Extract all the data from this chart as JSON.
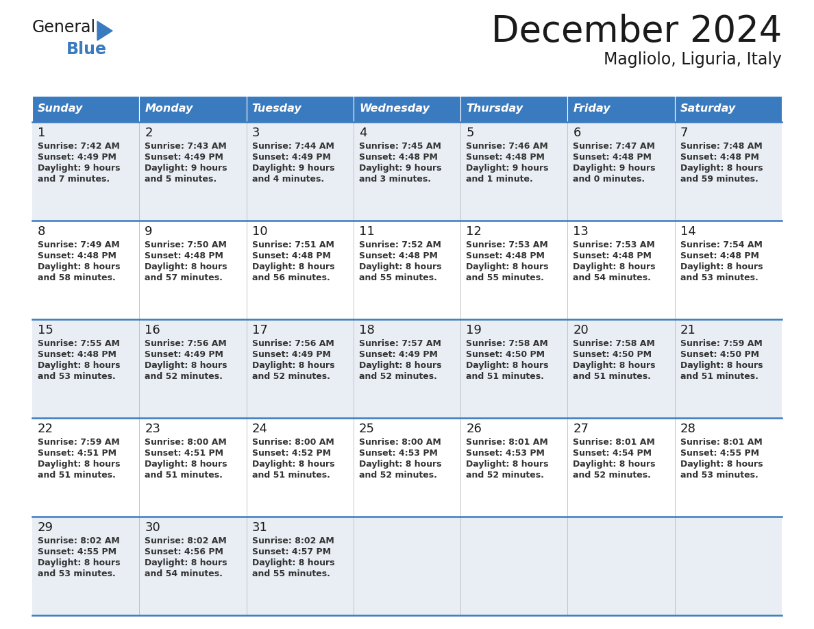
{
  "title": "December 2024",
  "subtitle": "Magliolo, Liguria, Italy",
  "header_bg_color": "#3a7abf",
  "header_text_color": "#ffffff",
  "row_bg_colors": [
    "#e8eef4",
    "#ffffff",
    "#e8eef4",
    "#ffffff",
    "#e8eef4"
  ],
  "border_color": "#3a7abf",
  "day_names": [
    "Sunday",
    "Monday",
    "Tuesday",
    "Wednesday",
    "Thursday",
    "Friday",
    "Saturday"
  ],
  "days": [
    {
      "day": 1,
      "col": 0,
      "row": 0,
      "sunrise": "7:42 AM",
      "sunset": "4:49 PM",
      "daylight_line1": "Daylight: 9 hours",
      "daylight_line2": "and 7 minutes."
    },
    {
      "day": 2,
      "col": 1,
      "row": 0,
      "sunrise": "7:43 AM",
      "sunset": "4:49 PM",
      "daylight_line1": "Daylight: 9 hours",
      "daylight_line2": "and 5 minutes."
    },
    {
      "day": 3,
      "col": 2,
      "row": 0,
      "sunrise": "7:44 AM",
      "sunset": "4:49 PM",
      "daylight_line1": "Daylight: 9 hours",
      "daylight_line2": "and 4 minutes."
    },
    {
      "day": 4,
      "col": 3,
      "row": 0,
      "sunrise": "7:45 AM",
      "sunset": "4:48 PM",
      "daylight_line1": "Daylight: 9 hours",
      "daylight_line2": "and 3 minutes."
    },
    {
      "day": 5,
      "col": 4,
      "row": 0,
      "sunrise": "7:46 AM",
      "sunset": "4:48 PM",
      "daylight_line1": "Daylight: 9 hours",
      "daylight_line2": "and 1 minute."
    },
    {
      "day": 6,
      "col": 5,
      "row": 0,
      "sunrise": "7:47 AM",
      "sunset": "4:48 PM",
      "daylight_line1": "Daylight: 9 hours",
      "daylight_line2": "and 0 minutes."
    },
    {
      "day": 7,
      "col": 6,
      "row": 0,
      "sunrise": "7:48 AM",
      "sunset": "4:48 PM",
      "daylight_line1": "Daylight: 8 hours",
      "daylight_line2": "and 59 minutes."
    },
    {
      "day": 8,
      "col": 0,
      "row": 1,
      "sunrise": "7:49 AM",
      "sunset": "4:48 PM",
      "daylight_line1": "Daylight: 8 hours",
      "daylight_line2": "and 58 minutes."
    },
    {
      "day": 9,
      "col": 1,
      "row": 1,
      "sunrise": "7:50 AM",
      "sunset": "4:48 PM",
      "daylight_line1": "Daylight: 8 hours",
      "daylight_line2": "and 57 minutes."
    },
    {
      "day": 10,
      "col": 2,
      "row": 1,
      "sunrise": "7:51 AM",
      "sunset": "4:48 PM",
      "daylight_line1": "Daylight: 8 hours",
      "daylight_line2": "and 56 minutes."
    },
    {
      "day": 11,
      "col": 3,
      "row": 1,
      "sunrise": "7:52 AM",
      "sunset": "4:48 PM",
      "daylight_line1": "Daylight: 8 hours",
      "daylight_line2": "and 55 minutes."
    },
    {
      "day": 12,
      "col": 4,
      "row": 1,
      "sunrise": "7:53 AM",
      "sunset": "4:48 PM",
      "daylight_line1": "Daylight: 8 hours",
      "daylight_line2": "and 55 minutes."
    },
    {
      "day": 13,
      "col": 5,
      "row": 1,
      "sunrise": "7:53 AM",
      "sunset": "4:48 PM",
      "daylight_line1": "Daylight: 8 hours",
      "daylight_line2": "and 54 minutes."
    },
    {
      "day": 14,
      "col": 6,
      "row": 1,
      "sunrise": "7:54 AM",
      "sunset": "4:48 PM",
      "daylight_line1": "Daylight: 8 hours",
      "daylight_line2": "and 53 minutes."
    },
    {
      "day": 15,
      "col": 0,
      "row": 2,
      "sunrise": "7:55 AM",
      "sunset": "4:48 PM",
      "daylight_line1": "Daylight: 8 hours",
      "daylight_line2": "and 53 minutes."
    },
    {
      "day": 16,
      "col": 1,
      "row": 2,
      "sunrise": "7:56 AM",
      "sunset": "4:49 PM",
      "daylight_line1": "Daylight: 8 hours",
      "daylight_line2": "and 52 minutes."
    },
    {
      "day": 17,
      "col": 2,
      "row": 2,
      "sunrise": "7:56 AM",
      "sunset": "4:49 PM",
      "daylight_line1": "Daylight: 8 hours",
      "daylight_line2": "and 52 minutes."
    },
    {
      "day": 18,
      "col": 3,
      "row": 2,
      "sunrise": "7:57 AM",
      "sunset": "4:49 PM",
      "daylight_line1": "Daylight: 8 hours",
      "daylight_line2": "and 52 minutes."
    },
    {
      "day": 19,
      "col": 4,
      "row": 2,
      "sunrise": "7:58 AM",
      "sunset": "4:50 PM",
      "daylight_line1": "Daylight: 8 hours",
      "daylight_line2": "and 51 minutes."
    },
    {
      "day": 20,
      "col": 5,
      "row": 2,
      "sunrise": "7:58 AM",
      "sunset": "4:50 PM",
      "daylight_line1": "Daylight: 8 hours",
      "daylight_line2": "and 51 minutes."
    },
    {
      "day": 21,
      "col": 6,
      "row": 2,
      "sunrise": "7:59 AM",
      "sunset": "4:50 PM",
      "daylight_line1": "Daylight: 8 hours",
      "daylight_line2": "and 51 minutes."
    },
    {
      "day": 22,
      "col": 0,
      "row": 3,
      "sunrise": "7:59 AM",
      "sunset": "4:51 PM",
      "daylight_line1": "Daylight: 8 hours",
      "daylight_line2": "and 51 minutes."
    },
    {
      "day": 23,
      "col": 1,
      "row": 3,
      "sunrise": "8:00 AM",
      "sunset": "4:51 PM",
      "daylight_line1": "Daylight: 8 hours",
      "daylight_line2": "and 51 minutes."
    },
    {
      "day": 24,
      "col": 2,
      "row": 3,
      "sunrise": "8:00 AM",
      "sunset": "4:52 PM",
      "daylight_line1": "Daylight: 8 hours",
      "daylight_line2": "and 51 minutes."
    },
    {
      "day": 25,
      "col": 3,
      "row": 3,
      "sunrise": "8:00 AM",
      "sunset": "4:53 PM",
      "daylight_line1": "Daylight: 8 hours",
      "daylight_line2": "and 52 minutes."
    },
    {
      "day": 26,
      "col": 4,
      "row": 3,
      "sunrise": "8:01 AM",
      "sunset": "4:53 PM",
      "daylight_line1": "Daylight: 8 hours",
      "daylight_line2": "and 52 minutes."
    },
    {
      "day": 27,
      "col": 5,
      "row": 3,
      "sunrise": "8:01 AM",
      "sunset": "4:54 PM",
      "daylight_line1": "Daylight: 8 hours",
      "daylight_line2": "and 52 minutes."
    },
    {
      "day": 28,
      "col": 6,
      "row": 3,
      "sunrise": "8:01 AM",
      "sunset": "4:55 PM",
      "daylight_line1": "Daylight: 8 hours",
      "daylight_line2": "and 53 minutes."
    },
    {
      "day": 29,
      "col": 0,
      "row": 4,
      "sunrise": "8:02 AM",
      "sunset": "4:55 PM",
      "daylight_line1": "Daylight: 8 hours",
      "daylight_line2": "and 53 minutes."
    },
    {
      "day": 30,
      "col": 1,
      "row": 4,
      "sunrise": "8:02 AM",
      "sunset": "4:56 PM",
      "daylight_line1": "Daylight: 8 hours",
      "daylight_line2": "and 54 minutes."
    },
    {
      "day": 31,
      "col": 2,
      "row": 4,
      "sunrise": "8:02 AM",
      "sunset": "4:57 PM",
      "daylight_line1": "Daylight: 8 hours",
      "daylight_line2": "and 55 minutes."
    }
  ]
}
